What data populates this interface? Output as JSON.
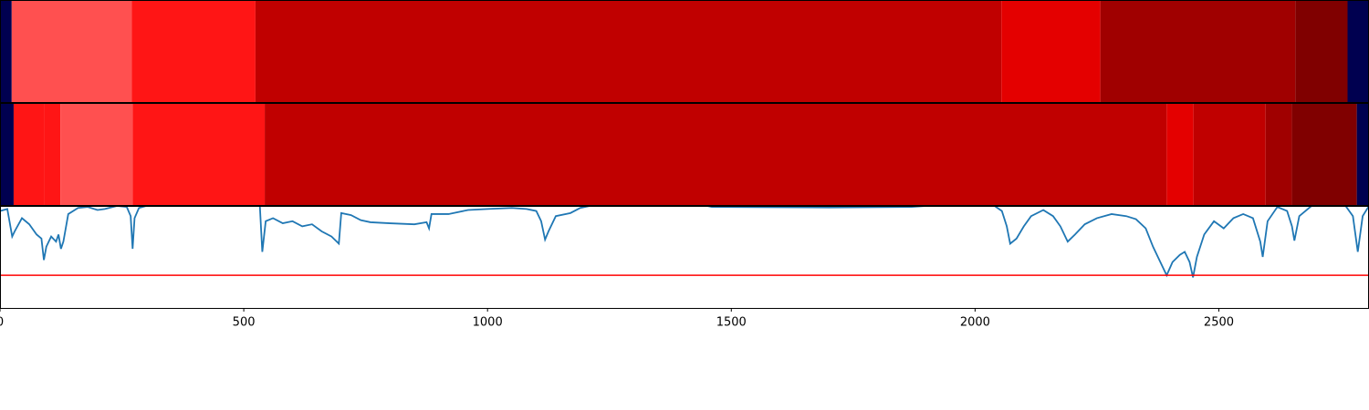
{
  "chart_data": [
    {
      "type": "segments",
      "xlim": [
        0,
        2808
      ],
      "segments": [
        {
          "start": 0,
          "end": 24,
          "color": "#000050"
        },
        {
          "start": 24,
          "end": 270,
          "color": "#ff5050"
        },
        {
          "start": 270,
          "end": 524,
          "color": "#ff1515"
        },
        {
          "start": 524,
          "end": 2054,
          "color": "#c00000"
        },
        {
          "start": 2054,
          "end": 2257,
          "color": "#e40000"
        },
        {
          "start": 2257,
          "end": 2657,
          "color": "#a00000"
        },
        {
          "start": 2657,
          "end": 2764,
          "color": "#800000"
        },
        {
          "start": 2764,
          "end": 2808,
          "color": "#000050"
        }
      ]
    },
    {
      "type": "segments",
      "xlim": [
        0,
        2808
      ],
      "segments": [
        {
          "start": 0,
          "end": 28,
          "color": "#000050"
        },
        {
          "start": 28,
          "end": 90,
          "color": "#ff1515"
        },
        {
          "start": 90,
          "end": 124,
          "color": "#ff1515"
        },
        {
          "start": 124,
          "end": 272,
          "color": "#ff5050"
        },
        {
          "start": 272,
          "end": 543,
          "color": "#ff1515"
        },
        {
          "start": 543,
          "end": 2393,
          "color": "#c00000"
        },
        {
          "start": 2393,
          "end": 2448,
          "color": "#e40000"
        },
        {
          "start": 2448,
          "end": 2596,
          "color": "#c00000"
        },
        {
          "start": 2596,
          "end": 2650,
          "color": "#a00000"
        },
        {
          "start": 2650,
          "end": 2783,
          "color": "#800000"
        },
        {
          "start": 2783,
          "end": 2808,
          "color": "#000050"
        }
      ]
    },
    {
      "type": "line",
      "xlim": [
        0,
        2808
      ],
      "ylim": [
        0,
        1
      ],
      "xticks": [
        0,
        500,
        1000,
        1500,
        2000,
        2500
      ],
      "hline": 0.32,
      "hline_color": "#ff0000",
      "series": [
        {
          "color": "#1f77b4",
          "x": [
            0,
            15,
            25,
            30,
            45,
            60,
            75,
            85,
            90,
            95,
            105,
            115,
            120,
            125,
            130,
            140,
            160,
            180,
            200,
            215,
            240,
            260,
            268,
            272,
            276,
            285,
            300,
            533,
            538,
            545,
            560,
            580,
            600,
            620,
            640,
            660,
            680,
            695,
            700,
            720,
            740,
            760,
            800,
            850,
            875,
            880,
            885,
            920,
            960,
            1000,
            1050,
            1080,
            1100,
            1110,
            1118,
            1125,
            1140,
            1170,
            1190,
            1210,
            1450,
            1460,
            1700,
            1870,
            1900,
            2040,
            2055,
            2065,
            2072,
            2085,
            2100,
            2115,
            2140,
            2160,
            2175,
            2190,
            2205,
            2225,
            2250,
            2280,
            2310,
            2330,
            2350,
            2365,
            2380,
            2393,
            2405,
            2420,
            2430,
            2440,
            2447,
            2455,
            2470,
            2490,
            2510,
            2530,
            2550,
            2570,
            2585,
            2590,
            2600,
            2620,
            2640,
            2650,
            2655,
            2665,
            2690,
            2760,
            2775,
            2785,
            2795,
            2808
          ],
          "values": [
            0.95,
            0.97,
            0.7,
            0.75,
            0.88,
            0.82,
            0.72,
            0.68,
            0.47,
            0.6,
            0.7,
            0.65,
            0.72,
            0.58,
            0.65,
            0.92,
            0.98,
            0.99,
            0.96,
            0.97,
            1.0,
            0.99,
            0.9,
            0.58,
            0.88,
            0.98,
            1.0,
            1.0,
            0.55,
            0.85,
            0.88,
            0.83,
            0.85,
            0.8,
            0.82,
            0.75,
            0.7,
            0.63,
            0.93,
            0.91,
            0.86,
            0.84,
            0.83,
            0.82,
            0.84,
            0.78,
            0.92,
            0.92,
            0.96,
            0.97,
            0.98,
            0.97,
            0.95,
            0.85,
            0.67,
            0.75,
            0.9,
            0.93,
            0.98,
            1.0,
            1.0,
            0.99,
            0.985,
            0.99,
            1.0,
            1.0,
            0.95,
            0.8,
            0.63,
            0.68,
            0.8,
            0.9,
            0.96,
            0.9,
            0.8,
            0.65,
            0.72,
            0.82,
            0.88,
            0.92,
            0.9,
            0.87,
            0.78,
            0.6,
            0.45,
            0.32,
            0.45,
            0.52,
            0.55,
            0.45,
            0.3,
            0.5,
            0.72,
            0.85,
            0.78,
            0.88,
            0.92,
            0.88,
            0.65,
            0.5,
            0.85,
            0.99,
            0.95,
            0.8,
            0.66,
            0.9,
            1.0,
            1.0,
            0.9,
            0.55,
            0.9,
            1.0
          ]
        }
      ]
    }
  ]
}
